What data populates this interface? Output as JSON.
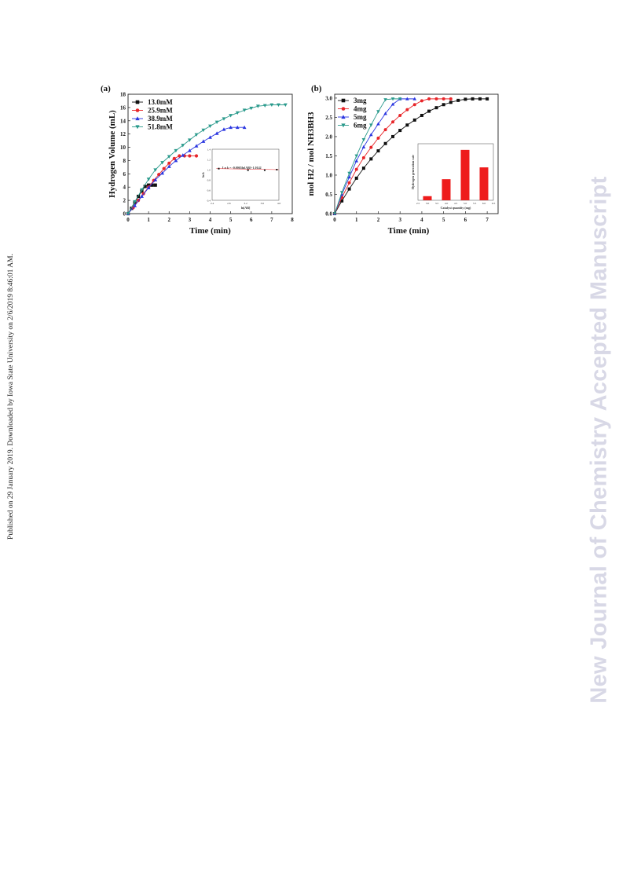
{
  "margin_text": "Published on 29 January 2019. Downloaded by Iowa State University on 2/6/2019 8:46:01 AM.",
  "watermark": "New Journal of Chemistry Accepted Manuscript",
  "colors": {
    "black": "#111111",
    "red": "#e8262a",
    "blue": "#2a36e0",
    "teal": "#2a9a8c"
  },
  "chart_data": [
    {
      "panel_label": "(a)",
      "type": "line",
      "xlabel": "Time (min)",
      "ylabel": "Hydrogen Volume (mL)",
      "xlim": [
        0,
        8
      ],
      "ylim": [
        0,
        18
      ],
      "xticks": [
        0,
        1,
        2,
        3,
        4,
        5,
        6,
        7,
        8
      ],
      "yticks": [
        0,
        2,
        4,
        6,
        8,
        10,
        12,
        14,
        16,
        18
      ],
      "legend_position": "top-left",
      "series": [
        {
          "name": "13.0mM",
          "color": "#111111",
          "marker": "square",
          "x": [
            0,
            0.17,
            0.33,
            0.5,
            0.67,
            0.83,
            1.0,
            1.17,
            1.33
          ],
          "y": [
            0,
            0.8,
            1.7,
            2.6,
            3.4,
            4.1,
            4.3,
            4.3,
            4.3
          ]
        },
        {
          "name": "25.9mM",
          "color": "#e8262a",
          "marker": "circle",
          "x": [
            0,
            0.25,
            0.5,
            0.75,
            1.0,
            1.25,
            1.5,
            1.75,
            2.0,
            2.25,
            2.5,
            2.75,
            3.0,
            3.33
          ],
          "y": [
            0,
            0.9,
            2.0,
            3.0,
            4.0,
            5.0,
            5.9,
            6.8,
            7.6,
            8.3,
            8.7,
            8.7,
            8.7,
            8.7
          ]
        },
        {
          "name": "38.9mM",
          "color": "#2a36e0",
          "marker": "triangle-up",
          "x": [
            0,
            0.33,
            0.67,
            1.0,
            1.33,
            1.67,
            2.0,
            2.33,
            2.67,
            3.0,
            3.33,
            3.67,
            4.0,
            4.33,
            4.67,
            5.0,
            5.33,
            5.67
          ],
          "y": [
            0,
            1.2,
            2.6,
            3.9,
            5.1,
            6.1,
            7.1,
            8.0,
            8.8,
            9.5,
            10.2,
            10.9,
            11.5,
            12.1,
            12.7,
            13.0,
            13.0,
            13.0
          ]
        },
        {
          "name": "51.8mM",
          "color": "#2a9a8c",
          "marker": "triangle-down",
          "x": [
            0,
            0.33,
            0.67,
            1.0,
            1.33,
            1.67,
            2.0,
            2.33,
            2.67,
            3.0,
            3.33,
            3.67,
            4.0,
            4.33,
            4.67,
            5.0,
            5.33,
            5.67,
            6.0,
            6.33,
            6.67,
            7.0,
            7.33,
            7.67
          ],
          "y": [
            0,
            1.8,
            3.6,
            5.2,
            6.6,
            7.7,
            8.6,
            9.5,
            10.3,
            11.1,
            11.9,
            12.6,
            13.2,
            13.8,
            14.3,
            14.8,
            15.2,
            15.6,
            15.9,
            16.2,
            16.3,
            16.4,
            16.4,
            16.4
          ]
        }
      ],
      "inset": {
        "type": "scatter",
        "equation": "Ln k = -0.0065ln[AB]+1.0142",
        "xlabel": "ln[AB]",
        "ylabel": "ln k",
        "xticks": [
          "2.4",
          "2.8",
          "3.2",
          "3.6",
          "4.0"
        ],
        "yticks": [
          "0.4",
          "0.6",
          "0.8",
          "1.0",
          "1.2",
          "1.4"
        ],
        "xlim": [
          2.4,
          4.0
        ],
        "ylim": [
          0.4,
          1.4
        ],
        "x": [
          2.56,
          3.26,
          3.66,
          3.95
        ],
        "y": [
          1.02,
          0.99,
          0.99,
          1.0
        ]
      }
    },
    {
      "panel_label": "(b)",
      "type": "line",
      "xlabel": "Time (min)",
      "ylabel": "mol H2 / mol NH3BH3",
      "xlim": [
        0,
        7.5
      ],
      "ylim": [
        0,
        3.1
      ],
      "xticks": [
        0,
        1,
        2,
        3,
        4,
        5,
        6,
        7
      ],
      "yticks": [
        "0.0",
        "0.5",
        "1.0",
        "1.5",
        "2.0",
        "2.5",
        "3.0"
      ],
      "legend_position": "top-left",
      "series": [
        {
          "name": "3mg",
          "color": "#111111",
          "marker": "square",
          "x": [
            0,
            0.33,
            0.67,
            1.0,
            1.33,
            1.67,
            2.0,
            2.33,
            2.67,
            3.0,
            3.33,
            3.67,
            4.0,
            4.33,
            4.67,
            5.0,
            5.33,
            5.67,
            6.0,
            6.33,
            6.67,
            7.0
          ],
          "y": [
            0,
            0.33,
            0.64,
            0.92,
            1.18,
            1.42,
            1.63,
            1.82,
            2.0,
            2.16,
            2.3,
            2.43,
            2.55,
            2.66,
            2.75,
            2.83,
            2.89,
            2.94,
            2.97,
            2.98,
            2.98,
            2.98
          ]
        },
        {
          "name": "4mg",
          "color": "#e8262a",
          "marker": "circle",
          "x": [
            0,
            0.33,
            0.67,
            1.0,
            1.33,
            1.67,
            2.0,
            2.33,
            2.67,
            3.0,
            3.33,
            3.67,
            4.0,
            4.33,
            4.67,
            5.0,
            5.33
          ],
          "y": [
            0,
            0.42,
            0.8,
            1.15,
            1.45,
            1.72,
            1.96,
            2.18,
            2.38,
            2.55,
            2.7,
            2.83,
            2.93,
            2.98,
            2.98,
            2.98,
            2.98
          ]
        },
        {
          "name": "5mg",
          "color": "#2a36e0",
          "marker": "triangle-up",
          "x": [
            0,
            0.33,
            0.67,
            1.0,
            1.33,
            1.67,
            2.0,
            2.33,
            2.67,
            3.0,
            3.33,
            3.67
          ],
          "y": [
            0,
            0.5,
            0.95,
            1.37,
            1.73,
            2.05,
            2.33,
            2.6,
            2.84,
            2.98,
            2.98,
            2.98
          ]
        },
        {
          "name": "6mg",
          "color": "#2a9a8c",
          "marker": "triangle-down",
          "x": [
            0,
            0.33,
            0.67,
            1.0,
            1.33,
            1.67,
            2.0,
            2.33,
            2.67,
            3.0
          ],
          "y": [
            0,
            0.55,
            1.05,
            1.5,
            1.92,
            2.3,
            2.65,
            2.96,
            2.98,
            2.98
          ]
        }
      ],
      "inset": {
        "type": "bar",
        "xlabel": "Catalyst quantity (mg)",
        "ylabel": "Hydrogen generation rate",
        "xticks": [
          "2.5",
          "3.0",
          "3.5",
          "4.0",
          "4.5",
          "5.0",
          "5.5",
          "6.0",
          "6.5"
        ],
        "categories": [
          3,
          4,
          5,
          6
        ],
        "values": [
          80,
          410,
          980,
          640
        ],
        "ylim": [
          0,
          1100
        ],
        "color": "#ee1c1c"
      }
    }
  ]
}
